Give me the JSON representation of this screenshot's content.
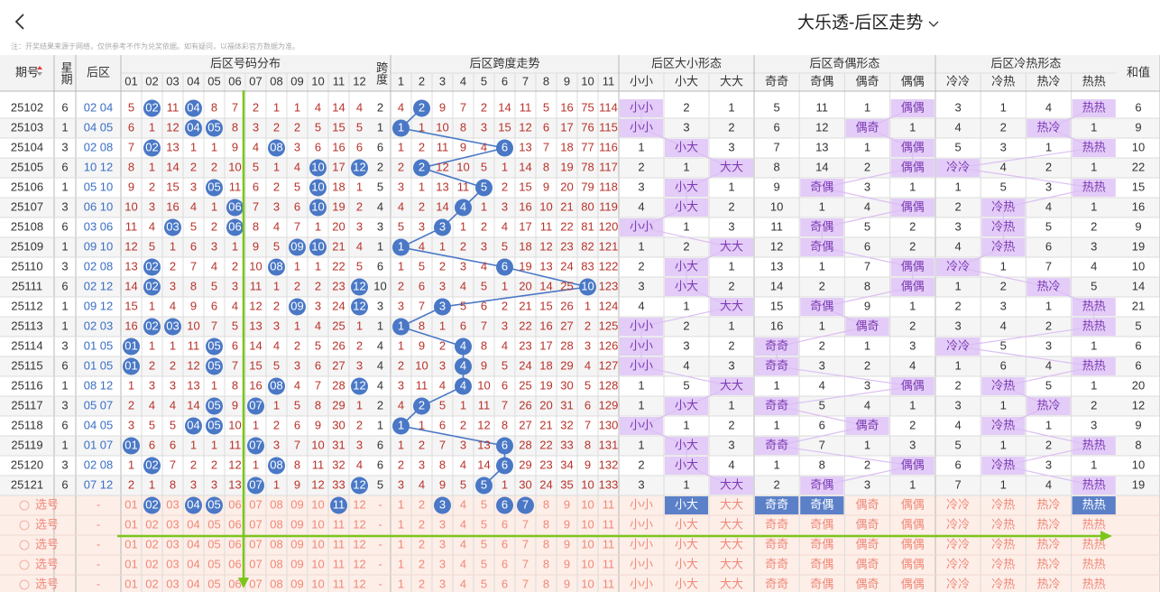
{
  "header": {
    "title": "大乐透-后区走势",
    "notice": "注：开奖结果来源于网络，仅供参考不作为兑奖依据。如有疑问，以福体彩官方数据为准。"
  },
  "columns": {
    "issue": "期号",
    "week": "星期",
    "back": "后区",
    "dist_title": "后区号码分布",
    "dist": [
      "01",
      "02",
      "03",
      "04",
      "05",
      "06",
      "07",
      "08",
      "09",
      "10",
      "11",
      "12"
    ],
    "span": "跨度",
    "span_title": "后区跨度走势",
    "span_cols": [
      "1",
      "2",
      "3",
      "4",
      "5",
      "6",
      "7",
      "8",
      "9",
      "10",
      "11"
    ],
    "bs_title": "后区大小形态",
    "bs": [
      "小小",
      "小大",
      "大大"
    ],
    "oe_title": "后区奇偶形态",
    "oe": [
      "奇奇",
      "奇偶",
      "偶奇",
      "偶偶"
    ],
    "hc_title": "后区冷热形态",
    "hc": [
      "冷冷",
      "冷热",
      "热冷",
      "热热"
    ],
    "sum": "和值"
  },
  "rows": [
    {
      "issue": "25102",
      "week": 6,
      "back": "02 04",
      "dist": [
        5,
        "02",
        11,
        "04",
        8,
        7,
        2,
        1,
        1,
        4,
        14,
        4
      ],
      "span": 2,
      "trend": [
        4,
        "2",
        9,
        7,
        2,
        14,
        11,
        5,
        16,
        75,
        114
      ],
      "bs": [
        "小小",
        2,
        1
      ],
      "oe": [
        5,
        11,
        1,
        "偶偶"
      ],
      "hc": [
        3,
        1,
        4,
        "热热"
      ],
      "sum": 6
    },
    {
      "issue": "25103",
      "week": 1,
      "back": "04 05",
      "dist": [
        6,
        1,
        12,
        "04",
        "05",
        8,
        3,
        2,
        2,
        5,
        15,
        5
      ],
      "span": 1,
      "trend": [
        "1",
        1,
        10,
        8,
        3,
        15,
        12,
        6,
        17,
        76,
        115
      ],
      "bs": [
        "小小",
        3,
        2
      ],
      "oe": [
        6,
        12,
        "偶奇",
        1
      ],
      "hc": [
        4,
        2,
        "热冷",
        1
      ],
      "sum": 9
    },
    {
      "issue": "25104",
      "week": 3,
      "back": "02 08",
      "dist": [
        7,
        "02",
        13,
        1,
        1,
        9,
        4,
        "08",
        3,
        6,
        16,
        6
      ],
      "span": 6,
      "trend": [
        1,
        2,
        11,
        9,
        4,
        "6",
        13,
        7,
        18,
        77,
        116
      ],
      "bs": [
        1,
        "小大",
        3
      ],
      "oe": [
        7,
        13,
        1,
        "偶偶"
      ],
      "hc": [
        5,
        3,
        1,
        "热热"
      ],
      "sum": 10
    },
    {
      "issue": "25105",
      "week": 6,
      "back": "10 12",
      "dist": [
        8,
        1,
        14,
        2,
        2,
        10,
        5,
        1,
        4,
        "10",
        17,
        "12"
      ],
      "span": 2,
      "trend": [
        2,
        "2",
        12,
        10,
        5,
        1,
        14,
        8,
        19,
        78,
        117
      ],
      "bs": [
        2,
        1,
        "大大"
      ],
      "oe": [
        8,
        14,
        2,
        "偶偶"
      ],
      "hc": [
        "冷冷",
        4,
        2,
        1
      ],
      "sum": 22
    },
    {
      "issue": "25106",
      "week": 1,
      "back": "05 10",
      "dist": [
        9,
        2,
        15,
        3,
        "05",
        11,
        6,
        2,
        5,
        "10",
        18,
        1
      ],
      "span": 5,
      "trend": [
        3,
        1,
        13,
        11,
        "5",
        2,
        15,
        9,
        20,
        79,
        118
      ],
      "bs": [
        3,
        "小大",
        1
      ],
      "oe": [
        9,
        "奇偶",
        3,
        1
      ],
      "hc": [
        1,
        5,
        3,
        "热热"
      ],
      "sum": 15
    },
    {
      "issue": "25107",
      "week": 3,
      "back": "06 10",
      "dist": [
        10,
        3,
        16,
        4,
        1,
        "06",
        7,
        3,
        6,
        "10",
        19,
        2
      ],
      "span": 4,
      "trend": [
        4,
        2,
        14,
        "4",
        1,
        3,
        16,
        10,
        21,
        80,
        119
      ],
      "bs": [
        4,
        "小大",
        2
      ],
      "oe": [
        10,
        1,
        4,
        "偶偶"
      ],
      "hc": [
        2,
        "冷热",
        4,
        1
      ],
      "sum": 16
    },
    {
      "issue": "25108",
      "week": 6,
      "back": "03 06",
      "dist": [
        11,
        4,
        "03",
        5,
        2,
        "06",
        8,
        4,
        7,
        1,
        20,
        3
      ],
      "span": 3,
      "trend": [
        5,
        3,
        "3",
        1,
        2,
        4,
        17,
        11,
        22,
        81,
        120
      ],
      "bs": [
        "小小",
        1,
        3
      ],
      "oe": [
        11,
        "奇偶",
        5,
        2
      ],
      "hc": [
        3,
        "冷热",
        5,
        2
      ],
      "sum": 9
    },
    {
      "issue": "25109",
      "week": 1,
      "back": "09 10",
      "dist": [
        12,
        5,
        1,
        6,
        3,
        1,
        9,
        5,
        "09",
        "10",
        21,
        4
      ],
      "span": 1,
      "trend": [
        "1",
        4,
        1,
        2,
        3,
        5,
        18,
        12,
        23,
        82,
        121
      ],
      "bs": [
        1,
        2,
        "大大"
      ],
      "oe": [
        12,
        "奇偶",
        6,
        2
      ],
      "hc": [
        4,
        "冷热",
        6,
        3
      ],
      "sum": 19
    },
    {
      "issue": "25110",
      "week": 3,
      "back": "02 08",
      "dist": [
        13,
        "02",
        2,
        7,
        4,
        2,
        10,
        "08",
        1,
        1,
        22,
        5
      ],
      "span": 6,
      "trend": [
        1,
        5,
        2,
        3,
        4,
        "6",
        19,
        13,
        24,
        83,
        122
      ],
      "bs": [
        2,
        "小大",
        1
      ],
      "oe": [
        13,
        1,
        7,
        "偶偶"
      ],
      "hc": [
        "冷冷",
        1,
        7,
        4
      ],
      "sum": 10
    },
    {
      "issue": "25111",
      "week": 6,
      "back": "02 12",
      "dist": [
        14,
        "02",
        3,
        8,
        5,
        3,
        11,
        1,
        2,
        2,
        23,
        "12"
      ],
      "span": 10,
      "trend": [
        2,
        6,
        3,
        4,
        5,
        1,
        20,
        14,
        25,
        "10",
        123
      ],
      "bs": [
        3,
        "小大",
        2
      ],
      "oe": [
        14,
        2,
        8,
        "偶偶"
      ],
      "hc": [
        1,
        2,
        "热冷",
        5
      ],
      "sum": 14
    },
    {
      "issue": "25112",
      "week": 1,
      "back": "09 12",
      "dist": [
        15,
        1,
        4,
        9,
        6,
        4,
        12,
        2,
        "09",
        3,
        24,
        "12"
      ],
      "span": 3,
      "trend": [
        3,
        7,
        "3",
        5,
        6,
        2,
        21,
        15,
        26,
        1,
        124
      ],
      "bs": [
        4,
        1,
        "大大"
      ],
      "oe": [
        15,
        "奇偶",
        9,
        1
      ],
      "hc": [
        2,
        3,
        1,
        "热热"
      ],
      "sum": 21
    },
    {
      "issue": "25113",
      "week": 1,
      "back": "02 03",
      "dist": [
        16,
        "02",
        "03",
        10,
        7,
        5,
        13,
        3,
        1,
        4,
        25,
        1
      ],
      "span": 1,
      "trend": [
        "1",
        8,
        1,
        6,
        7,
        3,
        22,
        16,
        27,
        2,
        125
      ],
      "bs": [
        "小小",
        2,
        1
      ],
      "oe": [
        16,
        1,
        "偶奇",
        2
      ],
      "hc": [
        3,
        4,
        2,
        "热热"
      ],
      "sum": 5
    },
    {
      "issue": "25114",
      "week": 3,
      "back": "01 05",
      "dist": [
        "01",
        1,
        1,
        11,
        "05",
        6,
        14,
        4,
        2,
        5,
        26,
        2
      ],
      "span": 4,
      "trend": [
        1,
        9,
        2,
        "4",
        8,
        4,
        23,
        17,
        28,
        3,
        126
      ],
      "bs": [
        "小小",
        3,
        2
      ],
      "oe": [
        "奇奇",
        2,
        1,
        3
      ],
      "hc": [
        "冷冷",
        5,
        3,
        1
      ],
      "sum": 6
    },
    {
      "issue": "25115",
      "week": 6,
      "back": "01 05",
      "dist": [
        "01",
        2,
        2,
        12,
        "05",
        7,
        15,
        5,
        3,
        6,
        27,
        3
      ],
      "span": 4,
      "trend": [
        2,
        10,
        3,
        "4",
        9,
        5,
        24,
        18,
        29,
        4,
        127
      ],
      "bs": [
        "小小",
        4,
        3
      ],
      "oe": [
        "奇奇",
        3,
        2,
        4
      ],
      "hc": [
        1,
        6,
        4,
        "热热"
      ],
      "sum": 6
    },
    {
      "issue": "25116",
      "week": 1,
      "back": "08 12",
      "dist": [
        1,
        3,
        3,
        13,
        1,
        8,
        16,
        "08",
        4,
        7,
        28,
        "12"
      ],
      "span": 4,
      "trend": [
        3,
        11,
        4,
        "4",
        10,
        6,
        25,
        19,
        30,
        5,
        128
      ],
      "bs": [
        1,
        5,
        "大大"
      ],
      "oe": [
        1,
        4,
        3,
        "偶偶"
      ],
      "hc": [
        2,
        "冷热",
        5,
        1
      ],
      "sum": 20
    },
    {
      "issue": "25117",
      "week": 3,
      "back": "05 07",
      "dist": [
        2,
        4,
        4,
        14,
        "05",
        9,
        "07",
        1,
        5,
        8,
        29,
        1
      ],
      "span": 2,
      "trend": [
        4,
        "2",
        5,
        1,
        11,
        7,
        26,
        20,
        31,
        6,
        129
      ],
      "bs": [
        1,
        "小大",
        1
      ],
      "oe": [
        "奇奇",
        5,
        4,
        1
      ],
      "hc": [
        3,
        1,
        "热冷",
        2
      ],
      "sum": 12
    },
    {
      "issue": "25118",
      "week": 6,
      "back": "04 05",
      "dist": [
        3,
        5,
        5,
        "04",
        "05",
        10,
        1,
        2,
        6,
        9,
        30,
        2
      ],
      "span": 1,
      "trend": [
        "1",
        1,
        6,
        2,
        12,
        8,
        27,
        21,
        32,
        7,
        130
      ],
      "bs": [
        "小小",
        1,
        2
      ],
      "oe": [
        1,
        6,
        "偶奇",
        2
      ],
      "hc": [
        4,
        "冷热",
        1,
        3
      ],
      "sum": 9
    },
    {
      "issue": "25119",
      "week": 1,
      "back": "01 07",
      "dist": [
        "01",
        6,
        6,
        1,
        1,
        11,
        "07",
        3,
        7,
        10,
        31,
        3
      ],
      "span": 6,
      "trend": [
        1,
        2,
        7,
        3,
        13,
        "6",
        28,
        22,
        33,
        8,
        131
      ],
      "bs": [
        1,
        "小大",
        3
      ],
      "oe": [
        "奇奇",
        7,
        1,
        3
      ],
      "hc": [
        5,
        1,
        2,
        "热热"
      ],
      "sum": 8
    },
    {
      "issue": "25120",
      "week": 3,
      "back": "02 08",
      "dist": [
        1,
        "02",
        7,
        2,
        2,
        12,
        1,
        "08",
        8,
        11,
        32,
        4
      ],
      "span": 6,
      "trend": [
        2,
        3,
        8,
        4,
        14,
        "6",
        29,
        23,
        34,
        9,
        132
      ],
      "bs": [
        2,
        "小大",
        4
      ],
      "oe": [
        1,
        8,
        2,
        "偶偶"
      ],
      "hc": [
        6,
        "冷热",
        3,
        1
      ],
      "sum": 10
    },
    {
      "issue": "25121",
      "week": 6,
      "back": "07 12",
      "dist": [
        2,
        1,
        8,
        3,
        3,
        13,
        "07",
        1,
        9,
        12,
        33,
        "12"
      ],
      "span": 5,
      "trend": [
        3,
        4,
        9,
        5,
        "5",
        1,
        30,
        24,
        35,
        10,
        133
      ],
      "bs": [
        3,
        1,
        "大大"
      ],
      "oe": [
        2,
        "奇偶",
        3,
        1
      ],
      "hc": [
        7,
        1,
        4,
        "热热"
      ],
      "sum": 19
    }
  ],
  "selection": [
    {
      "label": "选号",
      "back": "-",
      "span": "-",
      "picked": {
        "dist": [
          "02",
          "04",
          "05",
          "11"
        ],
        "span_cols": [
          "3",
          "6",
          "7"
        ],
        "bs": [
          "小大"
        ],
        "oe": [
          "奇奇",
          "奇偶"
        ],
        "hc": [
          "热热"
        ]
      }
    },
    {
      "label": "选号",
      "back": "-",
      "span": "-"
    },
    {
      "label": "选号",
      "back": "-",
      "span": "-"
    },
    {
      "label": "选号",
      "back": "-",
      "span": "-"
    },
    {
      "label": "选号",
      "back": "-",
      "span": "-"
    }
  ]
}
